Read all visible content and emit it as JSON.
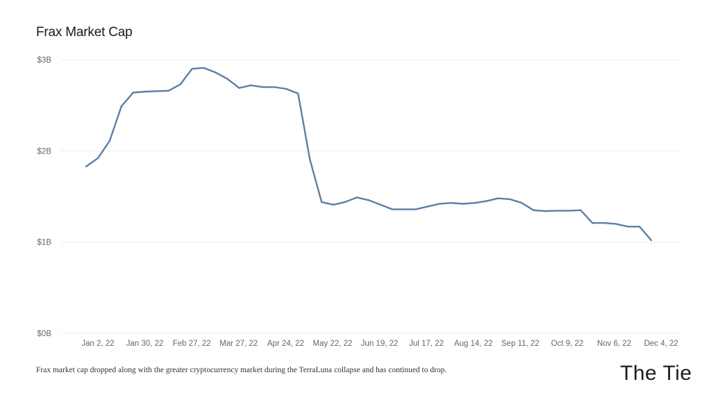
{
  "title": "Frax Market Cap",
  "caption": "Frax market cap dropped along with the greater cryptocurrency market during the TerraLuna collapse and has continued to drop.",
  "logo": "The Tie",
  "colors": {
    "line": "#5b7fa6",
    "grid": "#ececec",
    "tick_text": "#666666"
  },
  "chart_data": {
    "type": "line",
    "title": "Frax Market Cap",
    "xlabel": "",
    "ylabel": "",
    "grid": true,
    "ylim": [
      0,
      3
    ],
    "y_unit": "billion USD",
    "y_ticks": [
      {
        "value": 0,
        "label": "$0B"
      },
      {
        "value": 1,
        "label": "$1B"
      },
      {
        "value": 2,
        "label": "$2B"
      },
      {
        "value": 3,
        "label": "$3B"
      }
    ],
    "x_ticks": [
      "Jan 2, 22",
      "Jan 30, 22",
      "Feb 27, 22",
      "Mar 27, 22",
      "Apr 24, 22",
      "May 22, 22",
      "Jun 19, 22",
      "Jul 17, 22",
      "Aug 14, 22",
      "Sep 11, 22",
      "Oct 9, 22",
      "Nov 6, 22",
      "Dec 4, 22"
    ],
    "series": [
      {
        "values": [
          1.83,
          1.92,
          2.11,
          2.49,
          2.64,
          2.65,
          2.655,
          2.66,
          2.73,
          2.9,
          2.91,
          2.86,
          2.79,
          2.69,
          2.72,
          2.7,
          2.7,
          2.68,
          2.63,
          1.91,
          1.44,
          1.41,
          1.44,
          1.49,
          1.46,
          1.41,
          1.36,
          1.36,
          1.36,
          1.39,
          1.42,
          1.43,
          1.42,
          1.43,
          1.45,
          1.48,
          1.47,
          1.43,
          1.35,
          1.34,
          1.345,
          1.345,
          1.35,
          1.21,
          1.21,
          1.2,
          1.17,
          1.17,
          1.02
        ]
      }
    ]
  }
}
